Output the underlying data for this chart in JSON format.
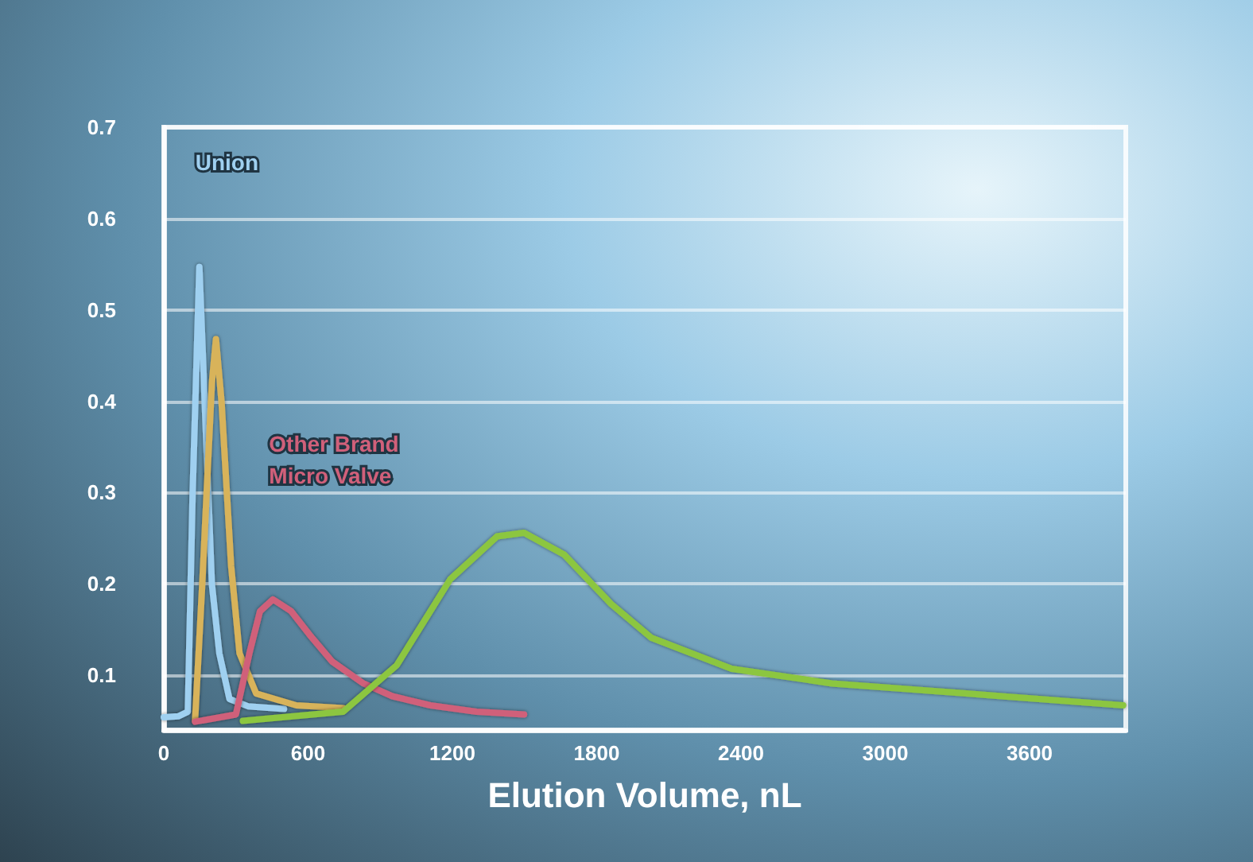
{
  "chart_data": {
    "type": "line",
    "xlabel": "Elution Volume, nL",
    "xlim": [
      0,
      4000
    ],
    "xticks": [
      0,
      600,
      1200,
      1800,
      2400,
      3000,
      3600
    ],
    "ylim": [
      0.04,
      0.7
    ],
    "yticks": [
      0.1,
      0.2,
      0.3,
      0.4,
      0.5,
      0.6,
      0.7
    ],
    "grid": "y",
    "legend": false,
    "marker": "none",
    "series": [
      {
        "name": "Union",
        "color": "#9fd0f0",
        "x": [
          0,
          60,
          100,
          120,
          148,
          170,
          200,
          231,
          273,
          350,
          500
        ],
        "values": [
          0.054,
          0.055,
          0.06,
          0.3,
          0.547,
          0.4,
          0.2,
          0.124,
          0.074,
          0.066,
          0.063
        ]
      },
      {
        "color": "#d8b35a",
        "x": [
          130,
          160,
          200,
          217,
          240,
          280,
          315,
          384,
          551,
          746
        ],
        "values": [
          0.05,
          0.2,
          0.42,
          0.468,
          0.4,
          0.22,
          0.124,
          0.08,
          0.067,
          0.064
        ]
      },
      {
        "name": "Other Brand Micro Valve",
        "color": "#d0607a",
        "x": [
          130,
          300,
          356,
          400,
          454,
          530,
          607,
          700,
          830,
          950,
          1108,
          1300,
          1498
        ],
        "values": [
          0.049,
          0.057,
          0.124,
          0.17,
          0.183,
          0.17,
          0.144,
          0.115,
          0.091,
          0.077,
          0.067,
          0.06,
          0.057
        ]
      },
      {
        "color": "#8cc63f",
        "x": [
          329,
          746,
          969,
          1191,
          1386,
          1498,
          1665,
          1860,
          2027,
          2361,
          2778,
          3335,
          3989
        ],
        "values": [
          0.05,
          0.06,
          0.111,
          0.205,
          0.252,
          0.256,
          0.232,
          0.178,
          0.141,
          0.107,
          0.091,
          0.08,
          0.067
        ]
      }
    ]
  }
}
